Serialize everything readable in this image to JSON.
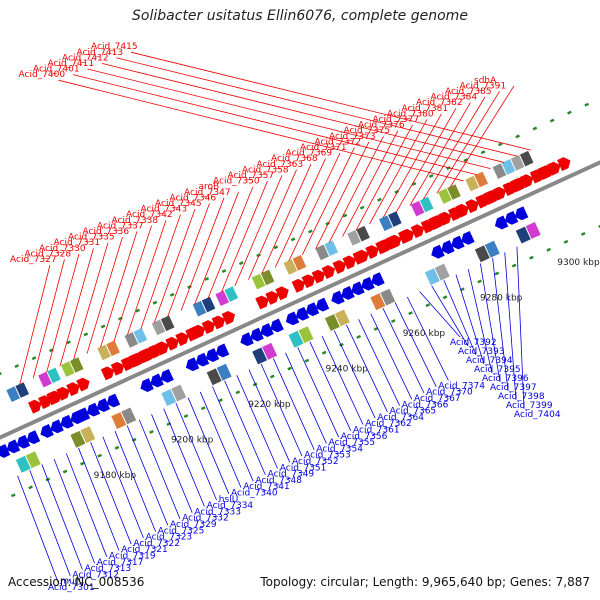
{
  "title": "Solibacter usitatus Ellin6076, complete genome",
  "accession": "Accession: NC_008536",
  "summary": "Topology: circular; Length: 9,965,640 bp; Genes: 7,887",
  "colors": {
    "forward": "#ee0000",
    "reverse": "#0000dd",
    "backbone": "#888888",
    "tick": "#2a8a2a"
  },
  "scale_labels": [
    "9180 kbp",
    "9200 kbp",
    "9220 kbp",
    "9240 kbp",
    "9260 kbp",
    "9280 kbp",
    "9300 kbp"
  ],
  "forward_labels": [
    "Acid_7327",
    "Acid_7328",
    "Acid_7330",
    "Acid_7331",
    "Acid_7335",
    "Acid_7336",
    "Acid_7337",
    "Acid_7338",
    "Acid_7342",
    "Acid_7343",
    "Acid_7345",
    "Acid_7346",
    "Acid_7347",
    "aroB",
    "Acid_7350",
    "Acid_7357",
    "Acid_7358",
    "Acid_7363",
    "Acid_7368",
    "Acid_7369",
    "Acid_7371",
    "Acid_7372",
    "Acid_7373",
    "Acid_7375",
    "Acid_7376",
    "Acid_7377",
    "Acid_7380",
    "Acid_7381",
    "Acid_7382",
    "Acid_7384",
    "Acid_7385",
    "Acid_7391",
    "sdhA",
    "Acid_7400",
    "Acid_7401",
    "Acid_7411",
    "Acid_7412",
    "Acid_7413",
    "Acid_7415"
  ],
  "reverse_labels": [
    "Acid_7301",
    "murC",
    "Acid_7312",
    "Acid_7313",
    "Acid_7317",
    "Acid_7319",
    "Acid_7321",
    "Acid_7322",
    "Acid_7323",
    "Acid_7325",
    "Acid_7329",
    "Acid_7332",
    "Acid_7333",
    "Acid_7334",
    "hslU",
    "Acid_7340",
    "Acid_7341",
    "Acid_7348",
    "Acid_7349",
    "Acid_7351",
    "Acid_7352",
    "Acid_7353",
    "Acid_7354",
    "Acid_7355",
    "Acid_7356",
    "Acid_7361",
    "Acid_7362",
    "Acid_7364",
    "Acid_7365",
    "Acid_7366",
    "Acid_7367",
    "Acid_7370",
    "Acid_7374",
    "Acid_7392",
    "Acid_7393",
    "Acid_7394",
    "Acid_7395",
    "Acid_7396",
    "Acid_7397",
    "Acid_7398",
    "Acid_7399",
    "Acid_7404"
  ]
}
